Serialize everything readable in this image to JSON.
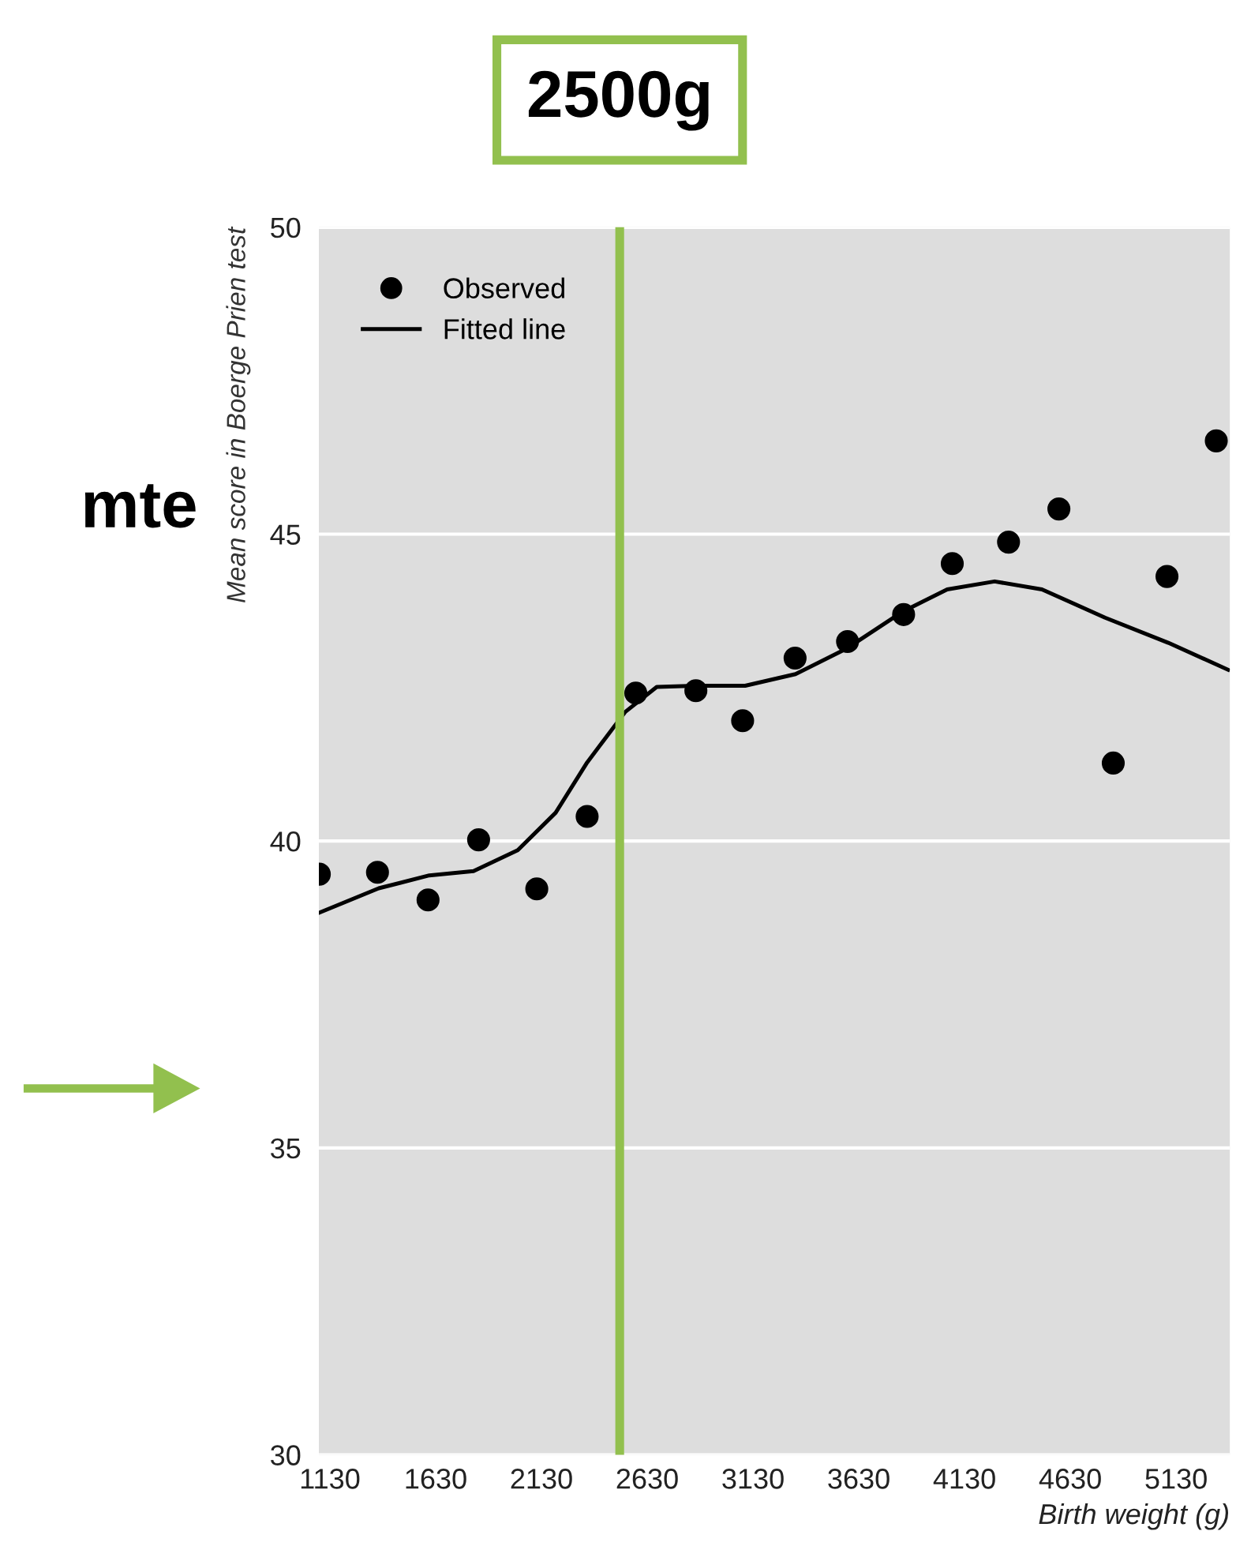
{
  "chart_data": {
    "type": "scatter",
    "ylabel": "Mean score in Boerge Prien test",
    "xlabel": "Birth weight (g)",
    "annotations": [
      "mte"
    ],
    "xlim": [
      1078,
      5384
    ],
    "ylim": [
      30,
      50
    ],
    "xticks": [
      1130,
      1630,
      2130,
      2630,
      3130,
      3630,
      4130,
      4630,
      5130
    ],
    "yticks": [
      30,
      35,
      40,
      45,
      50
    ],
    "grid": "y",
    "legend": "top left",
    "ref_lines": [
      {
        "axis": "x",
        "value": 2500,
        "label": "2500g",
        "color": "#92c04e"
      }
    ],
    "series": [
      {
        "name": "Observed",
        "marker": "circle",
        "color": "#000000",
        "x": [
          1080,
          1355,
          1594,
          1833,
          2108,
          2346,
          2576,
          2860,
          3081,
          3329,
          3577,
          3842,
          4072,
          4338,
          4576,
          4833,
          5087,
          5320
        ],
        "values": [
          39.46,
          39.49,
          39.04,
          40.02,
          39.22,
          40.4,
          42.41,
          42.45,
          41.96,
          42.98,
          43.25,
          43.69,
          44.52,
          44.87,
          45.41,
          41.27,
          44.31,
          46.52
        ]
      },
      {
        "name": "Fitted line",
        "type": "line",
        "marker": "none",
        "line_style": "solid",
        "color": "#000000",
        "x": [
          1078,
          1361,
          1600,
          1809,
          2018,
          2197,
          2346,
          2525,
          2675,
          2854,
          3093,
          3331,
          3570,
          3839,
          4048,
          4272,
          4496,
          4794,
          5093,
          5376
        ],
        "values": [
          38.83,
          39.23,
          39.44,
          39.51,
          39.85,
          40.46,
          41.28,
          42.1,
          42.51,
          42.53,
          42.53,
          42.72,
          43.13,
          43.74,
          44.1,
          44.23,
          44.1,
          43.64,
          43.23,
          42.79
        ]
      }
    ]
  }
}
